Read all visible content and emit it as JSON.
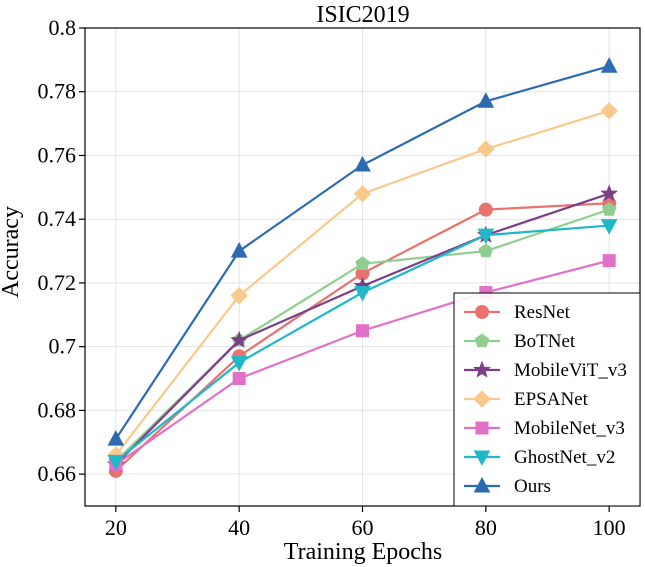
{
  "chart_data": {
    "type": "line",
    "title": "ISIC2019",
    "xlabel": "Training Epochs",
    "ylabel": "Accuracy",
    "x": [
      20,
      40,
      60,
      80,
      100
    ],
    "x_ticks": [
      "20",
      "40",
      "60",
      "80",
      "100"
    ],
    "xlim": [
      15,
      105
    ],
    "ylim": [
      0.65,
      0.8
    ],
    "y_ticks": [
      {
        "value": 0.66,
        "label": "0.66"
      },
      {
        "value": 0.68,
        "label": "0.68"
      },
      {
        "value": 0.7,
        "label": "0.7"
      },
      {
        "value": 0.72,
        "label": "0.72"
      },
      {
        "value": 0.74,
        "label": "0.74"
      },
      {
        "value": 0.76,
        "label": "0.76"
      },
      {
        "value": 0.78,
        "label": "0.78"
      },
      {
        "value": 0.8,
        "label": "0.8"
      }
    ],
    "grid": true,
    "legend_position": "bottom-right",
    "series": [
      {
        "name": "ResNet",
        "color": "#e8736e",
        "marker": "circle",
        "values": [
          0.661,
          0.697,
          0.723,
          0.743,
          0.745
        ]
      },
      {
        "name": "BoTNet",
        "color": "#8fce8f",
        "marker": "pentagon",
        "values": [
          0.664,
          0.702,
          0.726,
          0.73,
          0.743
        ]
      },
      {
        "name": "MobileViT_v3",
        "color": "#7a3f86",
        "marker": "star",
        "values": [
          0.663,
          0.702,
          0.719,
          0.735,
          0.748
        ]
      },
      {
        "name": "EPSANet",
        "color": "#f9c98b",
        "marker": "diamond",
        "values": [
          0.666,
          0.716,
          0.748,
          0.762,
          0.774
        ]
      },
      {
        "name": "MobileNet_v3",
        "color": "#e171c8",
        "marker": "square",
        "values": [
          0.663,
          0.69,
          0.705,
          0.717,
          0.727
        ]
      },
      {
        "name": "GhostNet_v2",
        "color": "#1fb8c9",
        "marker": "triangle-down",
        "values": [
          0.664,
          0.695,
          0.717,
          0.735,
          0.738
        ]
      },
      {
        "name": "Ours",
        "color": "#2d6bb0",
        "marker": "triangle-up",
        "values": [
          0.671,
          0.73,
          0.757,
          0.777,
          0.788
        ]
      }
    ]
  }
}
